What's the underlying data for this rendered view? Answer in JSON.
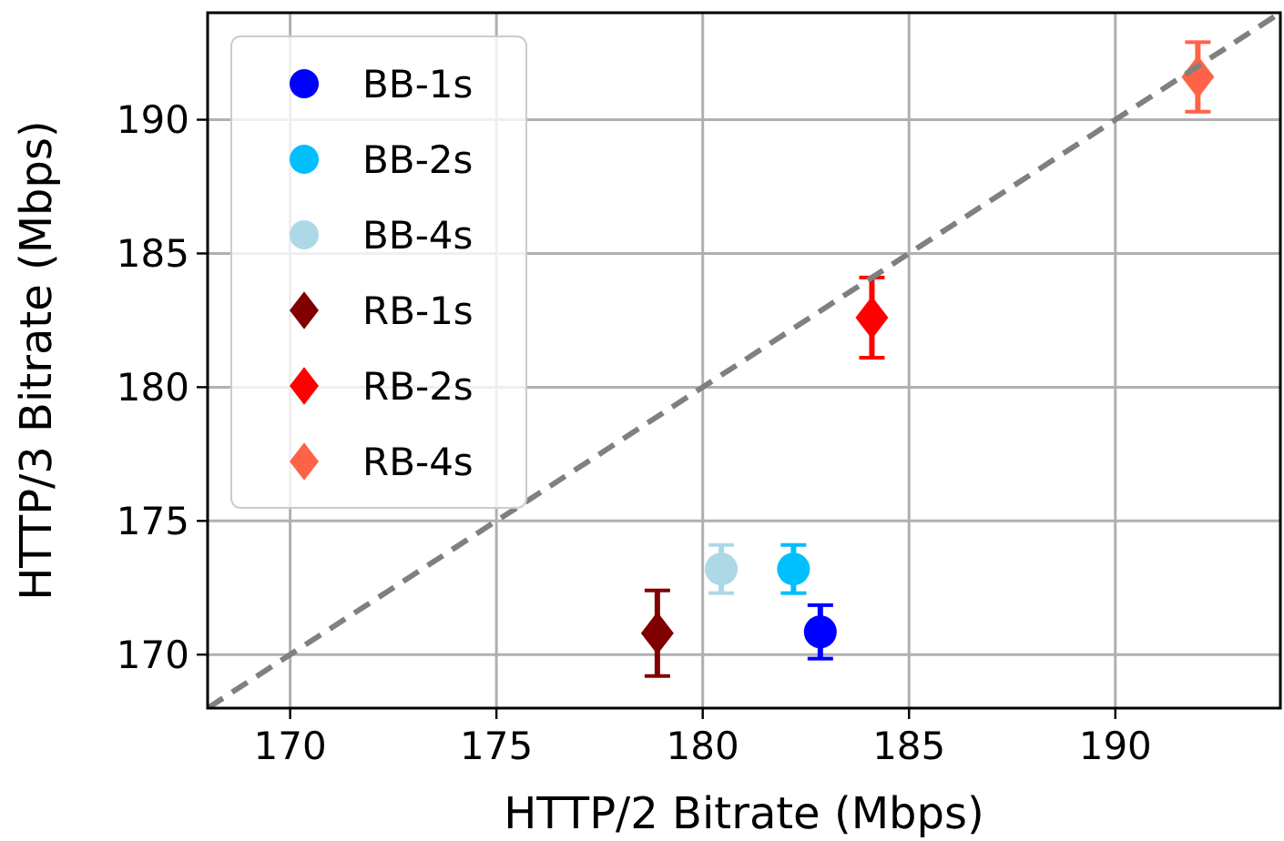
{
  "chart_data": {
    "type": "scatter",
    "xlabel": "HTTP/2 Bitrate (Mbps)",
    "ylabel": "HTTP/3 Bitrate (Mbps)",
    "xlim": [
      168,
      194
    ],
    "ylim": [
      168,
      194
    ],
    "xticks": [
      170,
      175,
      180,
      185,
      190
    ],
    "yticks": [
      170,
      175,
      180,
      185,
      190
    ],
    "grid": true,
    "legend": "top left",
    "series": [
      {
        "name": "BB-1s",
        "color": "#0000ff",
        "marker": "circle",
        "x": [
          182.85
        ],
        "values": [
          170.85
        ],
        "errors": [
          1.0
        ]
      },
      {
        "name": "BB-2s",
        "color": "#00bfff",
        "marker": "circle",
        "x": [
          182.2
        ],
        "values": [
          173.2
        ],
        "errors": [
          0.9
        ]
      },
      {
        "name": "BB-4s",
        "color": "#add8e6",
        "marker": "circle",
        "x": [
          180.45
        ],
        "values": [
          173.2
        ],
        "errors": [
          0.9
        ]
      },
      {
        "name": "RB-1s",
        "color": "#800000",
        "marker": "diamond",
        "x": [
          178.9
        ],
        "values": [
          170.8
        ],
        "errors": [
          1.6
        ]
      },
      {
        "name": "RB-2s",
        "color": "#ff0000",
        "marker": "diamond",
        "x": [
          184.1
        ],
        "values": [
          182.6
        ],
        "errors": [
          1.5
        ]
      },
      {
        "name": "RB-4s",
        "color": "#ff6347",
        "marker": "diamond",
        "x": [
          192.0
        ],
        "values": [
          191.6
        ],
        "errors": [
          1.3
        ]
      },
      {
        "type": "line",
        "color": "#808080",
        "line_style": "dashed",
        "x": [
          168,
          194
        ],
        "values": [
          168,
          194
        ]
      }
    ]
  }
}
